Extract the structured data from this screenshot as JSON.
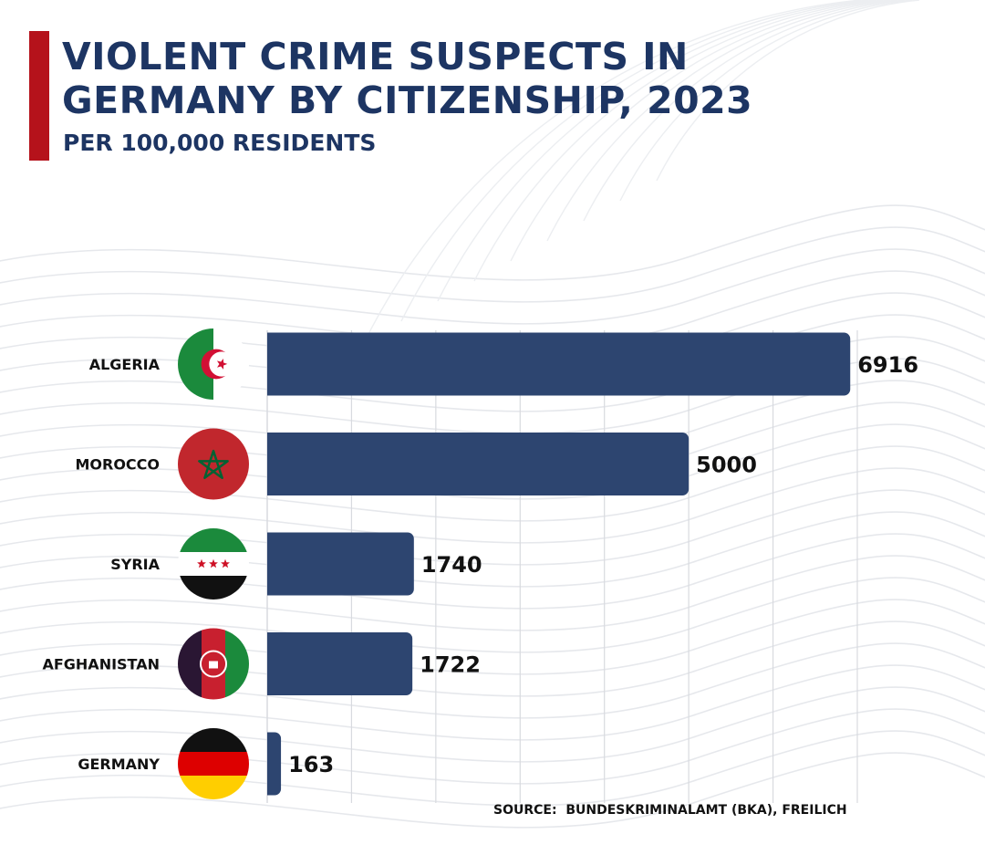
{
  "header": {
    "title_line1": "VIOLENT CRIME SUSPECTS IN",
    "title_line2": "GERMANY BY CITIZENSHIP, 2023",
    "subtitle": "PER 100,000 RESIDENTS"
  },
  "source": "SOURCE:  BUNDESKRIMINALAMT (BKA), FREILICH",
  "colors": {
    "bar": "#2d4570",
    "title": "#1d3563",
    "accent": "#b5121b",
    "grid": "#d8dadf"
  },
  "chart_data": {
    "type": "bar",
    "orientation": "horizontal",
    "categories": [
      "ALGERIA",
      "MOROCCO",
      "SYRIA",
      "AFGHANISTAN",
      "GERMANY"
    ],
    "values": [
      6916,
      5000,
      1740,
      1722,
      163
    ],
    "flag_icons": [
      "algeria-flag-icon",
      "morocco-flag-icon",
      "syria-flag-icon",
      "afghanistan-flag-icon",
      "germany-flag-icon"
    ],
    "xlim": [
      0,
      7000
    ],
    "grid": true,
    "data_labels": true
  }
}
